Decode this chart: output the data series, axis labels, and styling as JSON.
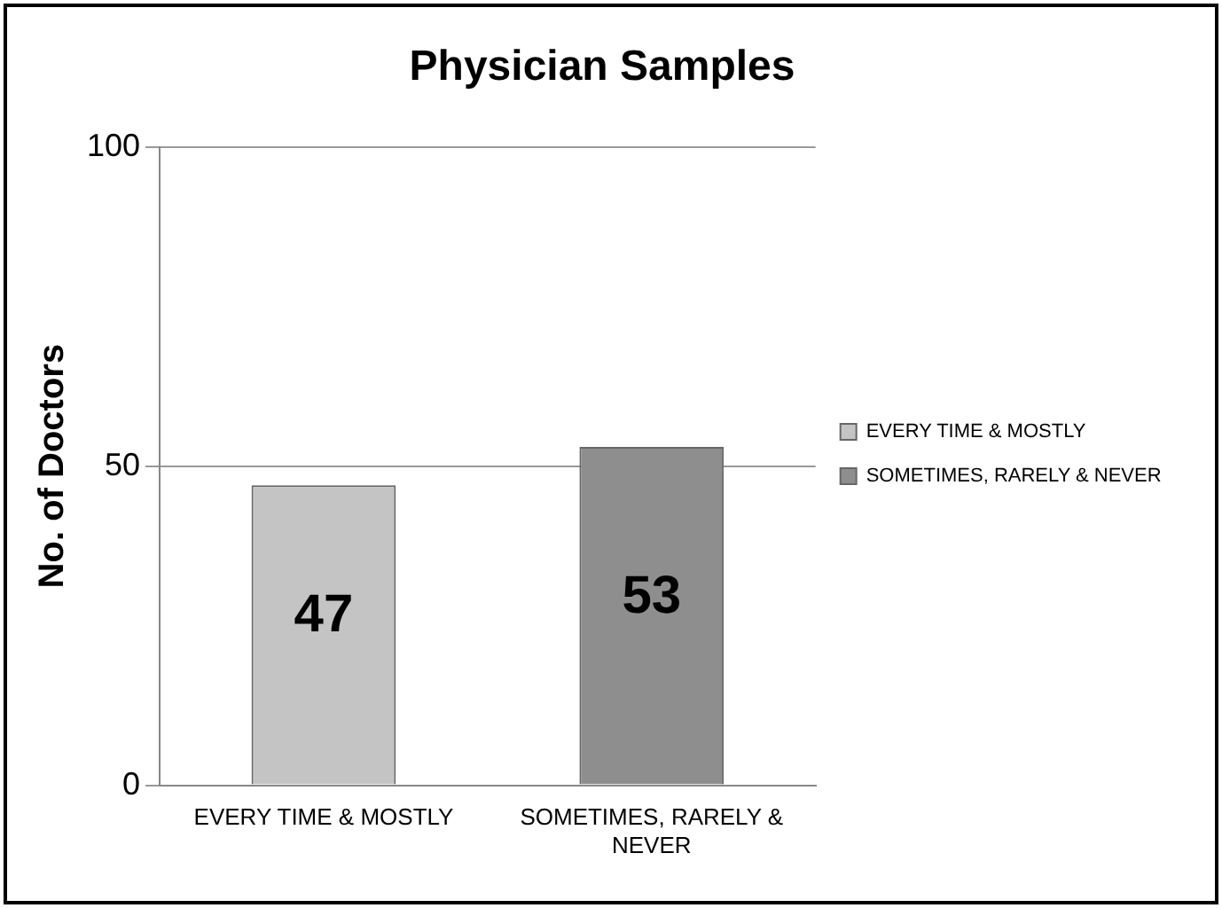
{
  "chart_data": {
    "type": "bar",
    "title": "Physician Samples",
    "ylabel": "No. of Doctors",
    "categories": [
      "EVERY TIME & MOSTLY",
      "SOMETIMES, RARELY & NEVER"
    ],
    "series": [
      {
        "name": "EVERY TIME & MOSTLY",
        "color": "#c4c4c4",
        "values": [
          47,
          null
        ]
      },
      {
        "name": "SOMETIMES, RARELY & NEVER",
        "color": "#8e8e8e",
        "values": [
          null,
          53
        ]
      }
    ],
    "ylim": [
      0,
      100
    ],
    "yticks": [
      0,
      50,
      100
    ],
    "grid": "y",
    "legend": "right",
    "data_labels": true
  }
}
